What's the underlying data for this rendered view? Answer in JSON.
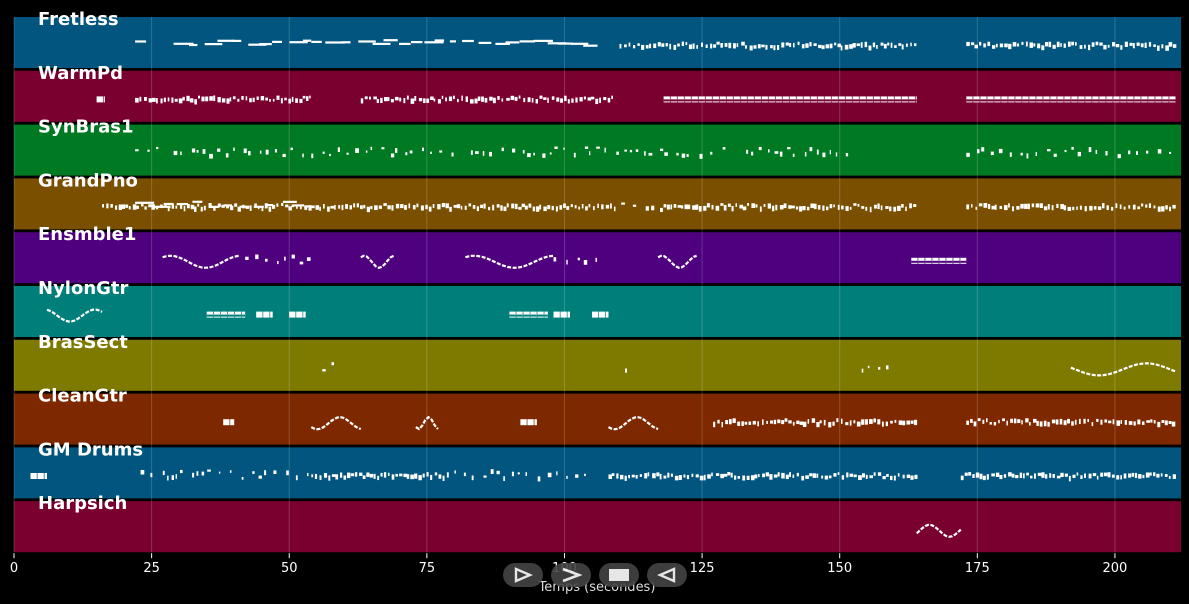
{
  "chart_data": {
    "type": "piano-roll",
    "xlabel": "Temps (secondes)",
    "xlim": [
      0,
      212
    ],
    "xticks": [
      0,
      25,
      50,
      75,
      100,
      125,
      150,
      175,
      200
    ],
    "grid": true,
    "tracks": [
      {
        "name": "Fretless",
        "color": "#01557e",
        "segments": [
          [
            22,
            24,
            "dash"
          ],
          [
            29,
            54,
            "dash"
          ],
          [
            54,
            106,
            "dash"
          ],
          [
            110,
            127,
            "dense"
          ],
          [
            127,
            164,
            "dense"
          ],
          [
            173,
            211,
            "dense"
          ]
        ]
      },
      {
        "name": "WarmPd",
        "color": "#7a0030",
        "segments": [
          [
            15,
            16.5,
            "block"
          ],
          [
            22,
            54,
            "dense"
          ],
          [
            63,
            109,
            "dense"
          ],
          [
            118,
            164,
            "block"
          ],
          [
            173,
            211,
            "block"
          ]
        ]
      },
      {
        "name": "SynBras1",
        "color": "#007a22",
        "segments": [
          [
            22,
            26,
            "sparse"
          ],
          [
            29,
            54,
            "sparse"
          ],
          [
            54,
            80,
            "sparse"
          ],
          [
            83,
            130,
            "sparse"
          ],
          [
            133,
            152,
            "sparse"
          ],
          [
            173,
            210,
            "sparse"
          ]
        ]
      },
      {
        "name": "GrandPno",
        "color": "#7a5000",
        "segments": [
          [
            16,
            54,
            "dense"
          ],
          [
            22,
            54,
            "dash"
          ],
          [
            54,
            109,
            "dense"
          ],
          [
            109,
            118,
            "sparse"
          ],
          [
            118,
            164,
            "dense"
          ],
          [
            173,
            211,
            "dense"
          ]
        ]
      },
      {
        "name": "Ensmble1",
        "color": "#4e007e",
        "segments": [
          [
            27,
            41,
            "wave"
          ],
          [
            42,
            54,
            "sparse"
          ],
          [
            63,
            69,
            "wave"
          ],
          [
            82,
            98,
            "wave"
          ],
          [
            98,
            108,
            "sparse"
          ],
          [
            117,
            124,
            "wave"
          ],
          [
            163,
            173,
            "block"
          ]
        ]
      },
      {
        "name": "NylonGtr",
        "color": "#007e7a",
        "segments": [
          [
            6,
            16,
            "wave"
          ],
          [
            35,
            42,
            "block"
          ],
          [
            44,
            47,
            "block"
          ],
          [
            50,
            53,
            "block"
          ],
          [
            90,
            97,
            "block"
          ],
          [
            98,
            101,
            "block"
          ],
          [
            105,
            108,
            "block"
          ]
        ]
      },
      {
        "name": "BrasSect",
        "color": "#7e7a00",
        "segments": [
          [
            56,
            58,
            "sparse"
          ],
          [
            111,
            113,
            "sparse"
          ],
          [
            154,
            159,
            "sparse"
          ],
          [
            192,
            211,
            "wave"
          ]
        ]
      },
      {
        "name": "CleanGtr",
        "color": "#7e2800",
        "segments": [
          [
            38,
            40,
            "block"
          ],
          [
            54,
            63,
            "wave"
          ],
          [
            73,
            77,
            "wave"
          ],
          [
            92,
            95,
            "block"
          ],
          [
            108,
            117,
            "wave"
          ],
          [
            127,
            164,
            "dense"
          ],
          [
            173,
            211,
            "dense"
          ]
        ]
      },
      {
        "name": "GM Drums",
        "color": "#01557e",
        "segments": [
          [
            3,
            6,
            "block"
          ],
          [
            23,
            54,
            "sparse"
          ],
          [
            54,
            79,
            "dense"
          ],
          [
            80,
            104,
            "sparse"
          ],
          [
            108,
            164,
            "dense"
          ],
          [
            172,
            211,
            "dense"
          ]
        ]
      },
      {
        "name": "Harpsich",
        "color": "#7a0030",
        "segments": [
          [
            164,
            172,
            "wave"
          ]
        ]
      }
    ]
  },
  "transport": {
    "items": [
      {
        "name": "play-button"
      },
      {
        "name": "fast-forward-button"
      },
      {
        "name": "stop-button"
      },
      {
        "name": "rewind-button"
      }
    ]
  }
}
